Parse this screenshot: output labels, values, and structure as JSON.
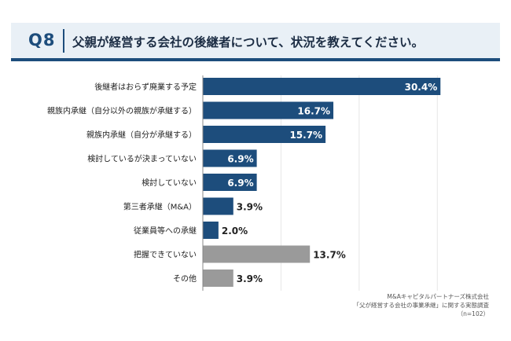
{
  "header": {
    "question_number": "Q8",
    "title": "父親が経営する会社の後継者について、状況を教えてください。"
  },
  "chart_data": {
    "type": "bar",
    "orientation": "horizontal",
    "categories": [
      "後継者はおらず廃業する予定",
      "親族内承継（自分以外の親族が承継する）",
      "親族内承継（自分が承継する）",
      "検討しているが決まっていない",
      "検討していない",
      "第三者承継（M&A）",
      "従業員等への承継",
      "把握できていない",
      "その他"
    ],
    "values": [
      30.4,
      16.7,
      15.7,
      6.9,
      6.9,
      3.9,
      2.0,
      13.7,
      3.9
    ],
    "value_labels": [
      "30.4%",
      "16.7%",
      "15.7%",
      "6.9%",
      "6.9%",
      "3.9%",
      "2.0%",
      "13.7%",
      "3.9%"
    ],
    "bar_colors": [
      "#1d4d7c",
      "#1d4d7c",
      "#1d4d7c",
      "#1d4d7c",
      "#1d4d7c",
      "#1d4d7c",
      "#1d4d7c",
      "#9a9a9a",
      "#9a9a9a"
    ],
    "xlim": [
      0,
      35
    ],
    "grid": true,
    "label_color_inside": "#ffffff",
    "label_color_outside": "#222222"
  },
  "source": {
    "line1": "M&Aキャピタルパートナーズ株式会社",
    "line2": "「父が経営する会社の事業承継」に関する実態調査",
    "line3": "（n=102）"
  }
}
